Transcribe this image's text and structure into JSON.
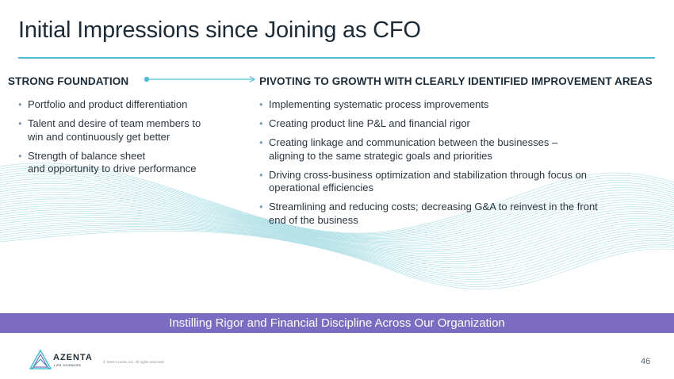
{
  "slide": {
    "title": "Initial Impressions since Joining as CFO",
    "left_column": {
      "heading": "STRONG FOUNDATION",
      "bullets": [
        "Portfolio and product differentiation",
        "Talent and desire of team members to\nwin and continuously get better",
        "Strength of balance sheet\nand opportunity to drive performance"
      ]
    },
    "right_column": {
      "heading": "PIVOTING TO GROWTH WITH CLEARLY IDENTIFIED IMPROVEMENT AREAS",
      "bullets": [
        "Implementing systematic process improvements",
        "Creating product line P&L and financial rigor",
        "Creating linkage and communication between the businesses –\naligning to the same strategic goals and priorities",
        "Driving cross-business optimization and stabilization through focus on\noperational efficiencies",
        "Streamlining and reducing costs; decreasing G&A to reinvest in the front\nend of the business"
      ]
    },
    "banner": "Instilling Rigor and Financial Discipline Across Our Organization",
    "footer": {
      "logo_name": "AZENTA",
      "logo_sub": "LIFE SCIENCES",
      "copyright": "© 2023 Azenta, Inc. All rights reserved",
      "page_number": "46"
    },
    "bullet_glyph": "•",
    "colors": {
      "accent_rule": "#4fc0d3",
      "banner": "#7b6bc1",
      "wave_lines": "#8fd3dc",
      "title_text": "#1c2b36"
    },
    "icons": [
      "azenta-logo-icon",
      "connector-arrow-icon"
    ]
  }
}
